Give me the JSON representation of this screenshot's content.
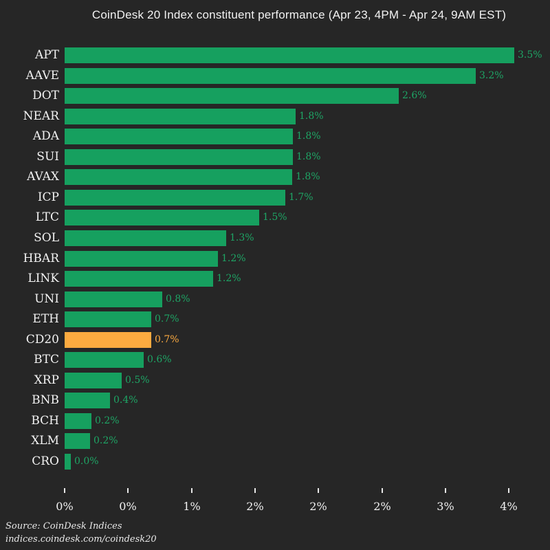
{
  "source": {
    "line1": "Source: CoinDesk Indices",
    "line2": "indices.coindesk.com/coindesk20"
  },
  "colors": {
    "background": "#262626",
    "title_text": "#f2f2f2",
    "label_text": "#f2f2f2",
    "tick_text": "#f2f2f2",
    "source_text": "#e8e8e8",
    "bar_green": "#16a05f",
    "value_green": "#1ea565",
    "bar_orange": "#fdab40",
    "value_orange": "#fdab40"
  },
  "chart_data": {
    "type": "bar",
    "orientation": "horizontal",
    "title": "CoinDesk 20 Index constituent performance (Apr 23, 4PM - Apr 24, 9AM EST)",
    "xlabel": "",
    "ylabel": "",
    "xlim": [
      0,
      3.6
    ],
    "grid": false,
    "legend": false,
    "highlight_category": "CD20",
    "categories": [
      "APT",
      "AAVE",
      "DOT",
      "NEAR",
      "ADA",
      "SUI",
      "AVAX",
      "ICP",
      "LTC",
      "SOL",
      "HBAR",
      "LINK",
      "UNI",
      "ETH",
      "CD20",
      "BTC",
      "XRP",
      "BNB",
      "BCH",
      "XLM",
      "CRO"
    ],
    "values": [
      3.54,
      3.24,
      2.63,
      1.82,
      1.8,
      1.8,
      1.79,
      1.74,
      1.53,
      1.27,
      1.21,
      1.17,
      0.77,
      0.68,
      0.68,
      0.62,
      0.45,
      0.36,
      0.21,
      0.2,
      0.05
    ],
    "value_labels": [
      "3.5%",
      "3.2%",
      "2.6%",
      "1.8%",
      "1.8%",
      "1.8%",
      "1.8%",
      "1.7%",
      "1.5%",
      "1.3%",
      "1.2%",
      "1.2%",
      "0.8%",
      "0.7%",
      "0.7%",
      "0.6%",
      "0.5%",
      "0.4%",
      "0.2%",
      "0.2%",
      "0.0%"
    ],
    "x_ticks": [
      {
        "value": 0.0,
        "label": "0%"
      },
      {
        "value": 0.5,
        "label": "0%"
      },
      {
        "value": 1.0,
        "label": "1%"
      },
      {
        "value": 1.5,
        "label": "2%"
      },
      {
        "value": 2.0,
        "label": "2%"
      },
      {
        "value": 2.5,
        "label": "2%"
      },
      {
        "value": 3.0,
        "label": "3%"
      },
      {
        "value": 3.5,
        "label": "4%"
      }
    ]
  }
}
